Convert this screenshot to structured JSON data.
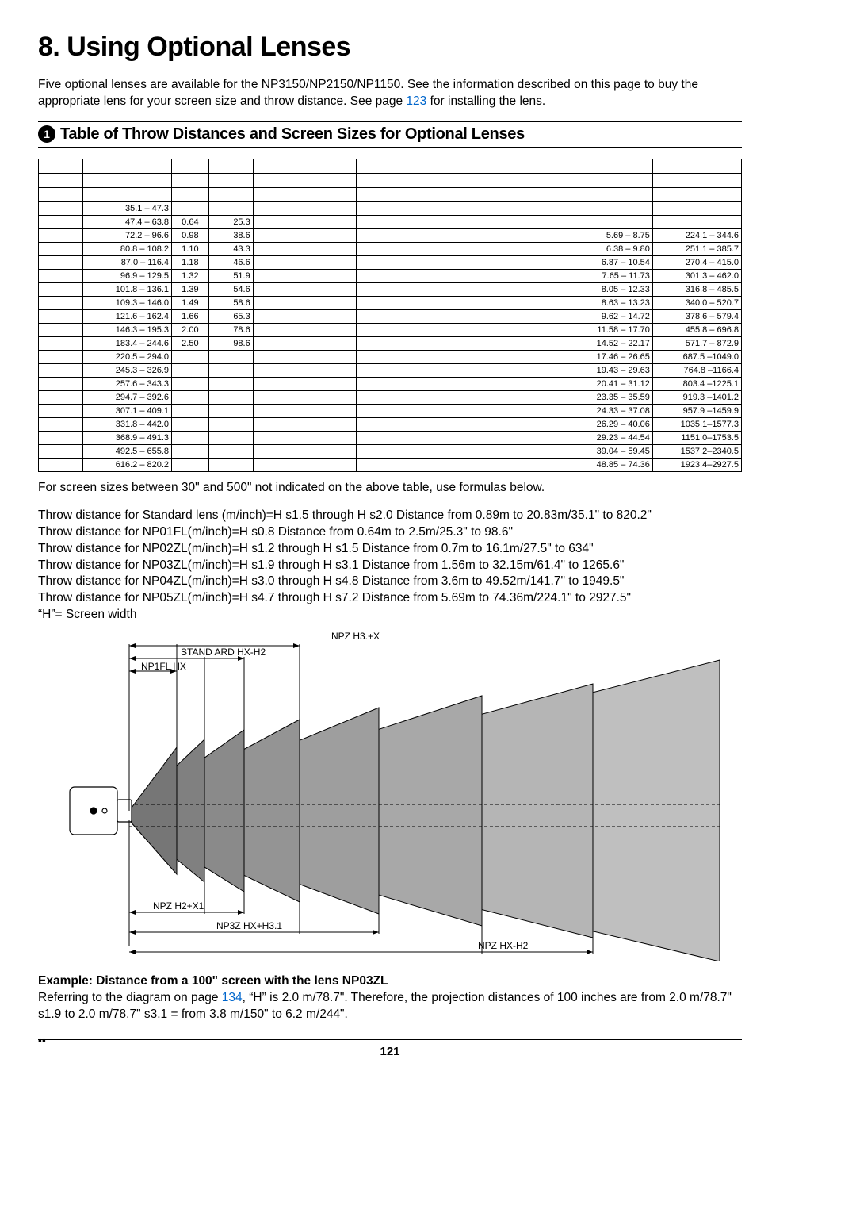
{
  "chapter_title": "8. Using Optional Lenses",
  "intro_text_a": "Five optional lenses are available for the NP3150/NP2150/NP1150. See the information described on this page to buy the appropriate lens for your screen size and throw distance. See page ",
  "intro_link": "123",
  "intro_text_b": " for installing the lens.",
  "section_number": "1",
  "section_title": "Table of Throw Distances and Screen Sizes for Optional Lenses",
  "table": {
    "rows": [
      {
        "col2": "35.1 – 47.3",
        "col3": "",
        "col4": "",
        "col8": "",
        "col9": ""
      },
      {
        "col2": "47.4 – 63.8",
        "col3": "0.64",
        "col4": "25.3",
        "col8": "",
        "col9": ""
      },
      {
        "col2": "72.2 – 96.6",
        "col3": "0.98",
        "col4": "38.6",
        "col8": "5.69 – 8.75",
        "col9": "224.1 – 344.6"
      },
      {
        "col2": "80.8 – 108.2",
        "col3": "1.10",
        "col4": "43.3",
        "col8": "6.38 – 9.80",
        "col9": "251.1 – 385.7"
      },
      {
        "col2": "87.0 – 116.4",
        "col3": "1.18",
        "col4": "46.6",
        "col8": "6.87 – 10.54",
        "col9": "270.4 – 415.0"
      },
      {
        "col2": "96.9 – 129.5",
        "col3": "1.32",
        "col4": "51.9",
        "col8": "7.65 – 11.73",
        "col9": "301.3 – 462.0"
      },
      {
        "col2": "101.8 – 136.1",
        "col3": "1.39",
        "col4": "54.6",
        "col8": "8.05 – 12.33",
        "col9": "316.8 – 485.5"
      },
      {
        "col2": "109.3 – 146.0",
        "col3": "1.49",
        "col4": "58.6",
        "col8": "8.63 – 13.23",
        "col9": "340.0 – 520.7"
      },
      {
        "col2": "121.6 – 162.4",
        "col3": "1.66",
        "col4": "65.3",
        "col8": "9.62 – 14.72",
        "col9": "378.6 – 579.4"
      },
      {
        "col2": "146.3 – 195.3",
        "col3": "2.00",
        "col4": "78.6",
        "col8": "11.58 – 17.70",
        "col9": "455.8 – 696.8"
      },
      {
        "col2": "183.4 – 244.6",
        "col3": "2.50",
        "col4": "98.6",
        "col8": "14.52 – 22.17",
        "col9": "571.7 – 872.9"
      },
      {
        "col2": "220.5 – 294.0",
        "col3": "",
        "col4": "",
        "col8": "17.46 – 26.65",
        "col9": "687.5 –1049.0"
      },
      {
        "col2": "245.3 – 326.9",
        "col3": "",
        "col4": "",
        "col8": "19.43 – 29.63",
        "col9": "764.8 –1166.4"
      },
      {
        "col2": "257.6 – 343.3",
        "col3": "",
        "col4": "",
        "col8": "20.41 – 31.12",
        "col9": "803.4 –1225.1"
      },
      {
        "col2": "294.7 – 392.6",
        "col3": "",
        "col4": "",
        "col8": "23.35 – 35.59",
        "col9": "919.3 –1401.2"
      },
      {
        "col2": "307.1 – 409.1",
        "col3": "",
        "col4": "",
        "col8": "24.33 – 37.08",
        "col9": "957.9 –1459.9"
      },
      {
        "col2": "331.8 – 442.0",
        "col3": "",
        "col4": "",
        "col8": "26.29 – 40.06",
        "col9": "1035.1–1577.3"
      },
      {
        "col2": "368.9 – 491.3",
        "col3": "",
        "col4": "",
        "col8": "29.23 – 44.54",
        "col9": "1151.0–1753.5"
      },
      {
        "col2": "492.5 – 655.8",
        "col3": "",
        "col4": "",
        "col8": "39.04 – 59.45",
        "col9": "1537.2–2340.5"
      },
      {
        "col2": "616.2 – 820.2",
        "col3": "",
        "col4": "",
        "col8": "48.85 – 74.36",
        "col9": "1923.4–2927.5"
      }
    ]
  },
  "note_below_table": "For screen sizes between 30\" and 500\" not indicated on the above table, use formulas below.",
  "formulas": [
    "Throw distance for Standard lens (m/inch)=H  s1.5 through H  s2.0 Distance from 0.89m to 20.83m/35.1\" to 820.2\"",
    "Throw distance for NP01FL(m/inch)=H  s0.8 Distance from 0.64m to 2.5m/25.3\" to 98.6\"",
    "Throw distance for NP02ZL(m/inch)=H  s1.2 through H  s1.5 Distance from 0.7m to 16.1m/27.5\" to 634\"",
    "Throw distance for NP03ZL(m/inch)=H  s1.9 through H  s3.1 Distance from 1.56m to 32.15m/61.4\" to 1265.6\"",
    "Throw distance for NP04ZL(m/inch)=H  s3.0 through H  s4.8 Distance from 3.6m to 49.52m/141.7\" to 1949.5\"",
    "Throw distance for NP05ZL(m/inch)=H  s4.7 through H  s7.2 Distance from 5.69m to 74.36m/224.1\" to 2927.5\"",
    "“H”= Screen width"
  ],
  "diagram": {
    "labels": {
      "top": "NPZ H3.+X",
      "standard": "STAND ARD HX-H2",
      "np01fl": "NP1FL HX",
      "np02zl": "NPZ H2+X1",
      "np03zl": "NP3Z HX+H3.1",
      "np04zl": "NPZ HX-H2",
      "np05zl": ""
    }
  },
  "example_title": "Example: Distance from a 100\" screen with the lens NP03ZL",
  "example_text_a": "Referring to the diagram on page ",
  "example_link": "134",
  "example_text_b": ", “H” is 2.0 m/78.7\". Therefore, the projection distances of 100 inches are from 2.0 m/78.7\"  s1.9 to 2.0 m/78.7\"  s3.1 = from 3.8 m/150\" to 6.2 m/244\".",
  "page_number": "121"
}
